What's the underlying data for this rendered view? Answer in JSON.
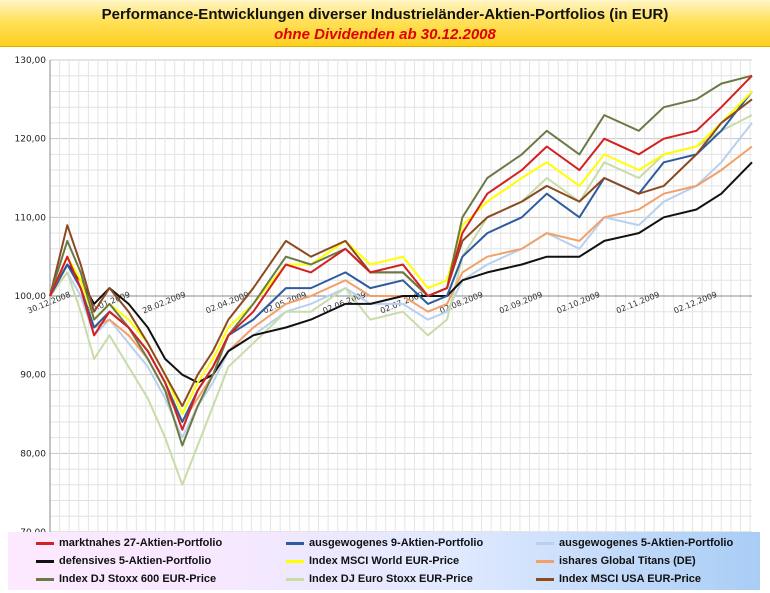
{
  "header": {
    "title": "Performance-Entwicklungen diverser Industrieländer-Aktien-Portfolios (in EUR)",
    "subtitle": "ohne Dividenden ab 30.12.2008"
  },
  "chart_data": {
    "type": "line",
    "ylim": [
      70,
      130
    ],
    "yticks": [
      70,
      80,
      90,
      100,
      110,
      120,
      130
    ],
    "ytick_labels": [
      "70,00",
      "80,00",
      "90,00",
      "100,00",
      "110,00",
      "120,00",
      "130,00"
    ],
    "xlim": [
      "30.12.2008",
      "31.12.2009"
    ],
    "x_tick_labels": [
      "30.12.2008",
      "30.01.2009",
      "28.02.2009",
      "02.04.2009",
      "02.05.2009",
      "02.06.2009",
      "02.07.2009",
      "02.08.2009",
      "02.09.2009",
      "02.10.2009",
      "02.11.2009",
      "02.12.2009"
    ],
    "grid": true,
    "x": [
      "30.12.2008",
      "08.01.2009",
      "15.01.2009",
      "22.01.2009",
      "30.01.2009",
      "09.02.2009",
      "19.02.2009",
      "28.02.2009",
      "09.03.2009",
      "17.03.2009",
      "25.03.2009",
      "02.04.2009",
      "15.04.2009",
      "02.05.2009",
      "15.05.2009",
      "02.06.2009",
      "15.06.2009",
      "02.07.2009",
      "15.07.2009",
      "25.07.2009",
      "02.08.2009",
      "15.08.2009",
      "02.09.2009",
      "15.09.2009",
      "02.10.2009",
      "15.10.2009",
      "02.11.2009",
      "15.11.2009",
      "02.12.2009",
      "15.12.2009",
      "31.12.2009"
    ],
    "series": [
      {
        "name": "marktnahes 27-Aktien-Portfolio",
        "color": "#d42020",
        "values": [
          100,
          105,
          101,
          95,
          98,
          96,
          93,
          89,
          83,
          88,
          91,
          95,
          98,
          104,
          103,
          106,
          103,
          104,
          100,
          101,
          108,
          113,
          116,
          119,
          116,
          120,
          118,
          120,
          121,
          124,
          128
        ]
      },
      {
        "name": "ausgewogenes 9-Aktien-Portfolio",
        "color": "#2e5c9e",
        "values": [
          100,
          104,
          101,
          96,
          98,
          96,
          93,
          89,
          84,
          88,
          91,
          95,
          97,
          101,
          101,
          103,
          101,
          102,
          99,
          100,
          105,
          108,
          110,
          113,
          110,
          115,
          113,
          117,
          118,
          121,
          126
        ]
      },
      {
        "name": "ausgewogenes 5-Aktien-Portfolio",
        "color": "#b8d0ee",
        "values": [
          100,
          103,
          100,
          95,
          97,
          94,
          91,
          87,
          82,
          86,
          89,
          93,
          95,
          98,
          99,
          101,
          99,
          99,
          97,
          98,
          102,
          104,
          106,
          108,
          106,
          110,
          109,
          112,
          114,
          117,
          122
        ]
      },
      {
        "name": "defensives 5-Aktien-Portfolio",
        "color": "#111111",
        "values": [
          100,
          104,
          102,
          99,
          101,
          99,
          96,
          92,
          90,
          89,
          90,
          93,
          95,
          96,
          97,
          99,
          99,
          100,
          100,
          100,
          102,
          103,
          104,
          105,
          105,
          107,
          108,
          110,
          111,
          113,
          117
        ]
      },
      {
        "name": "Index MSCI World EUR-Price",
        "color": "#ffff00",
        "values": [
          100,
          105,
          102,
          97,
          99,
          97,
          94,
          90,
          85,
          89,
          92,
          96,
          99,
          104,
          104,
          107,
          104,
          105,
          101,
          102,
          109,
          112,
          115,
          117,
          114,
          118,
          116,
          118,
          119,
          122,
          126
        ]
      },
      {
        "name": "ishares Global Titans (DE)",
        "color": "#f2a06a",
        "values": [
          100,
          104,
          101,
          96,
          97,
          95,
          92,
          88,
          84,
          87,
          90,
          93,
          96,
          99,
          100,
          102,
          100,
          100,
          98,
          99,
          103,
          105,
          106,
          108,
          107,
          110,
          111,
          113,
          114,
          116,
          119
        ]
      },
      {
        "name": "Index DJ Stoxx 600 EUR-Price",
        "color": "#6a7a44",
        "values": [
          100,
          107,
          103,
          97,
          99,
          96,
          92,
          88,
          81,
          86,
          90,
          95,
          99,
          105,
          104,
          106,
          103,
          103,
          100,
          101,
          110,
          115,
          118,
          121,
          118,
          123,
          121,
          124,
          125,
          127,
          128
        ]
      },
      {
        "name": "Index DJ Euro Stoxx EUR-Price",
        "color": "#c8dcaa",
        "values": [
          100,
          103,
          98,
          92,
          95,
          91,
          87,
          82,
          76,
          81,
          86,
          91,
          94,
          98,
          98,
          101,
          97,
          98,
          95,
          97,
          105,
          110,
          112,
          115,
          112,
          117,
          115,
          118,
          119,
          121,
          123
        ]
      },
      {
        "name": "Index MSCI USA EUR-Price",
        "color": "#8b4a20",
        "values": [
          100,
          109,
          104,
          98,
          101,
          98,
          94,
          90,
          86,
          90,
          93,
          97,
          101,
          107,
          105,
          107,
          103,
          103,
          100,
          101,
          107,
          110,
          112,
          114,
          112,
          115,
          113,
          114,
          118,
          122,
          125
        ]
      }
    ]
  }
}
